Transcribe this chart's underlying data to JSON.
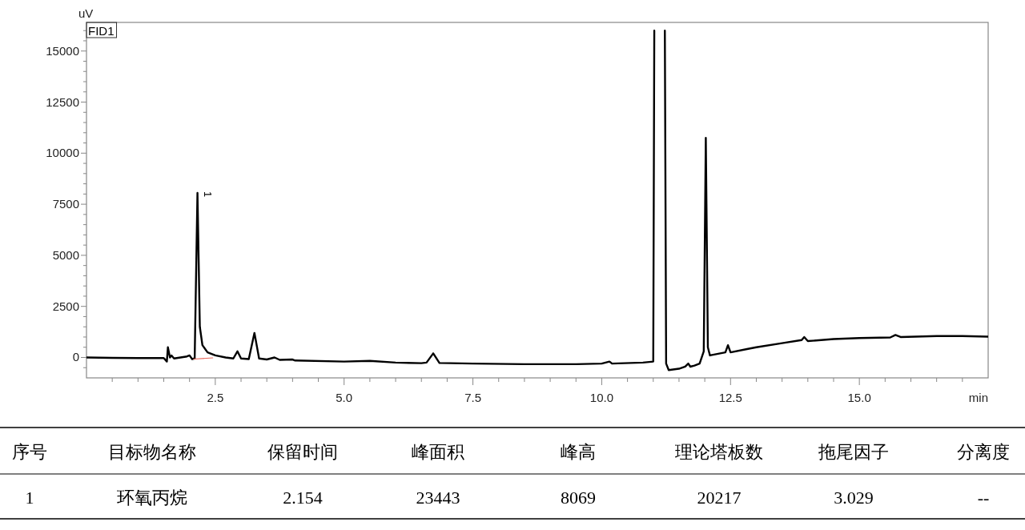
{
  "chart_data": {
    "type": "line",
    "title": "FID1",
    "xlabel": "min",
    "ylabel": "uV",
    "xlim": [
      0,
      17.5
    ],
    "ylim": [
      -1000,
      16400
    ],
    "xticks": [
      {
        "value": 0.5,
        "label": null
      },
      {
        "value": 1,
        "label": null
      },
      {
        "value": 1.5,
        "label": null
      },
      {
        "value": 2,
        "label": null
      },
      {
        "value": 2.5,
        "label": "2.5"
      },
      {
        "value": 3,
        "label": null
      },
      {
        "value": 3.5,
        "label": null
      },
      {
        "value": 4,
        "label": null
      },
      {
        "value": 4.5,
        "label": null
      },
      {
        "value": 5,
        "label": "5.0"
      },
      {
        "value": 5.5,
        "label": null
      },
      {
        "value": 6,
        "label": null
      },
      {
        "value": 6.5,
        "label": null
      },
      {
        "value": 7,
        "label": null
      },
      {
        "value": 7.5,
        "label": "7.5"
      },
      {
        "value": 8,
        "label": null
      },
      {
        "value": 8.5,
        "label": null
      },
      {
        "value": 9,
        "label": null
      },
      {
        "value": 9.5,
        "label": null
      },
      {
        "value": 10,
        "label": "10.0"
      },
      {
        "value": 10.5,
        "label": null
      },
      {
        "value": 11,
        "label": null
      },
      {
        "value": 11.5,
        "label": null
      },
      {
        "value": 12,
        "label": null
      },
      {
        "value": 12.5,
        "label": "12.5"
      },
      {
        "value": 13,
        "label": null
      },
      {
        "value": 13.5,
        "label": null
      },
      {
        "value": 14,
        "label": null
      },
      {
        "value": 14.5,
        "label": null
      },
      {
        "value": 15,
        "label": "15.0"
      },
      {
        "value": 15.5,
        "label": null
      },
      {
        "value": 16,
        "label": null
      },
      {
        "value": 16.5,
        "label": null
      },
      {
        "value": 17,
        "label": null
      }
    ],
    "yticks": [
      {
        "value": -500,
        "label": null
      },
      0,
      {
        "value": 500,
        "label": null
      },
      {
        "value": 1000,
        "label": null
      },
      {
        "value": 1500,
        "label": null
      },
      {
        "value": 2000,
        "label": null
      },
      2500,
      {
        "value": 3000,
        "label": null
      },
      {
        "value": 3500,
        "label": null
      },
      {
        "value": 4000,
        "label": null
      },
      {
        "value": 4500,
        "label": null
      },
      5000,
      {
        "value": 5500,
        "label": null
      },
      {
        "value": 6000,
        "label": null
      },
      {
        "value": 6500,
        "label": null
      },
      {
        "value": 7000,
        "label": null
      },
      7500,
      {
        "value": 8000,
        "label": null
      },
      {
        "value": 8500,
        "label": null
      },
      {
        "value": 9000,
        "label": null
      },
      {
        "value": 9500,
        "label": null
      },
      10000,
      {
        "value": 10500,
        "label": null
      },
      {
        "value": 11000,
        "label": null
      },
      {
        "value": 11500,
        "label": null
      },
      {
        "value": 12000,
        "label": null
      },
      12500,
      {
        "value": 13000,
        "label": null
      },
      {
        "value": 13500,
        "label": null
      },
      {
        "value": 14000,
        "label": null
      },
      {
        "value": 14500,
        "label": null
      },
      15000,
      {
        "value": 15500,
        "label": null
      },
      {
        "value": 16000,
        "label": null
      }
    ],
    "grid": false,
    "marker": "none",
    "line_style": "solid",
    "series": [
      {
        "color": "#000000",
        "x": [
          0,
          0.5,
          1.0,
          1.5,
          1.56,
          1.58,
          1.62,
          1.65,
          1.7,
          1.95,
          2.0,
          2.05,
          2.1,
          2.154,
          2.2,
          2.25,
          2.35,
          2.5,
          2.7,
          2.85,
          2.93,
          3.0,
          3.15,
          3.26,
          3.35,
          3.5,
          3.65,
          3.75,
          4.0,
          4.05,
          5.0,
          5.5,
          6.0,
          6.5,
          6.6,
          6.73,
          6.85,
          7.5,
          8.5,
          9.5,
          10.0,
          10.15,
          10.2,
          10.8,
          11.0,
          11.02
        ],
        "values": [
          0,
          -20,
          -30,
          -30,
          -200,
          500,
          0,
          100,
          -50,
          50,
          100,
          -80,
          -50,
          8050,
          1500,
          600,
          250,
          100,
          0,
          -50,
          300,
          -50,
          -80,
          1200,
          -50,
          -100,
          0,
          -120,
          -100,
          -150,
          -200,
          -170,
          -250,
          -280,
          -250,
          200,
          -270,
          -300,
          -330,
          -330,
          -300,
          -200,
          -300,
          -250,
          -200,
          16000
        ]
      },
      {
        "color": "#000000",
        "x": [
          11.225,
          11.25,
          11.3,
          11.5,
          11.62,
          11.68,
          11.72,
          11.8,
          11.9,
          11.98,
          12.02,
          12.06,
          12.1,
          12.3,
          12.4,
          12.45,
          12.5,
          12.8,
          13.0,
          13.5,
          13.88,
          13.93,
          14.0,
          14.5,
          15.0,
          15.6,
          15.7,
          15.8,
          16.5,
          17.0,
          17.5
        ],
        "values": [
          16000,
          -300,
          -620,
          -550,
          -450,
          -300,
          -450,
          -400,
          -300,
          300,
          10750,
          500,
          100,
          200,
          250,
          600,
          250,
          400,
          500,
          700,
          850,
          1000,
          800,
          900,
          950,
          980,
          1100,
          1000,
          1050,
          1050,
          1020
        ]
      },
      {
        "color": "#e8665a",
        "x": [
          2.08,
          2.45
        ],
        "values": [
          -80,
          -20
        ]
      }
    ],
    "annotations": [
      {
        "text": "1",
        "x": 2.154,
        "y": 8050
      },
      "序号",
      "目标物名称",
      "保留时间",
      "峰面积",
      "峰高",
      "理论塔板数",
      "拖尾因子",
      "分离度",
      "1",
      "环氧丙烷",
      "2.154",
      "23443",
      "8069",
      "20217",
      "3.029",
      "--"
    ]
  }
}
